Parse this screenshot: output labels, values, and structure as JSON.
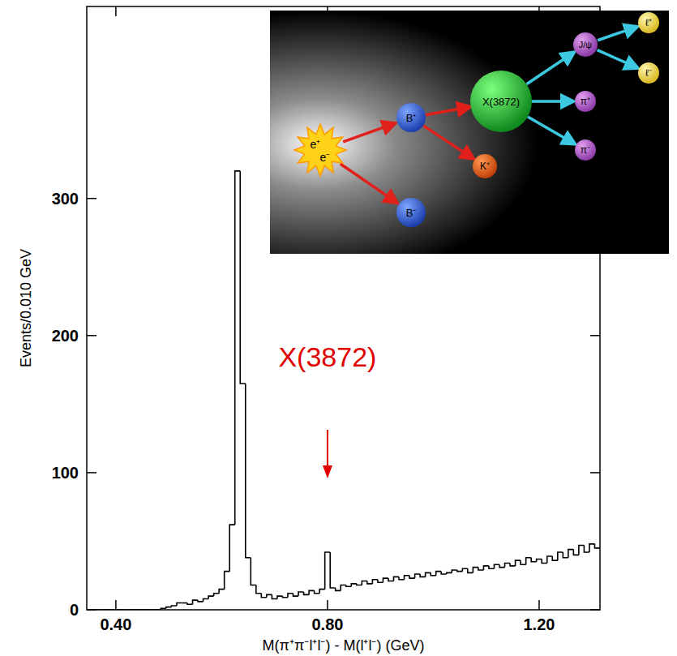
{
  "chart_data": {
    "type": "histogram",
    "x_label": "M(π⁺π⁻l⁺l⁻) - M(l⁺l⁻) (GeV)",
    "y_label": "Events/0.010 GeV",
    "bins": [
      0.345,
      0.355,
      0.365,
      0.375,
      0.385,
      0.395,
      0.405,
      0.415,
      0.425,
      0.435,
      0.445,
      0.455,
      0.465,
      0.475,
      0.485,
      0.495,
      0.505,
      0.515,
      0.525,
      0.535,
      0.545,
      0.555,
      0.565,
      0.575,
      0.585,
      0.595,
      0.605,
      0.615,
      0.625,
      0.635,
      0.645,
      0.655,
      0.665,
      0.675,
      0.685,
      0.695,
      0.705,
      0.715,
      0.725,
      0.735,
      0.745,
      0.755,
      0.765,
      0.775,
      0.785,
      0.795,
      0.805,
      0.815,
      0.825,
      0.835,
      0.845,
      0.855,
      0.865,
      0.875,
      0.885,
      0.895,
      0.905,
      0.915,
      0.925,
      0.935,
      0.945,
      0.955,
      0.965,
      0.975,
      0.985,
      0.995,
      1.005,
      1.015,
      1.025,
      1.035,
      1.045,
      1.055,
      1.065,
      1.075,
      1.085,
      1.095,
      1.105,
      1.115,
      1.125,
      1.135,
      1.145,
      1.155,
      1.165,
      1.175,
      1.185,
      1.195,
      1.205,
      1.215,
      1.225,
      1.235,
      1.245,
      1.255,
      1.265,
      1.275,
      1.285,
      1.295,
      1.305,
      1.315
    ],
    "values": [
      0,
      0,
      0,
      0,
      0,
      0,
      0,
      0,
      0,
      0,
      0,
      0,
      0,
      0,
      1,
      2,
      3,
      5,
      5,
      4,
      7,
      6,
      8,
      10,
      12,
      15,
      28,
      62,
      320,
      165,
      38,
      18,
      12,
      9,
      11,
      8,
      10,
      9,
      12,
      10,
      13,
      11,
      14,
      12,
      15,
      42,
      16,
      14,
      18,
      17,
      19,
      18,
      21,
      19,
      22,
      20,
      23,
      21,
      24,
      22,
      25,
      23,
      26,
      24,
      27,
      25,
      28,
      26,
      27,
      29,
      28,
      30,
      27,
      31,
      29,
      32,
      30,
      33,
      31,
      34,
      32,
      36,
      33,
      38,
      35,
      37,
      34,
      39,
      36,
      42,
      38,
      44,
      40,
      47,
      42,
      48,
      45
    ],
    "color": "#000000",
    "xlim": [
      0.345,
      1.315
    ],
    "ylim": [
      0,
      440
    ],
    "xticks": [
      {
        "value": 0.4,
        "label": "0.40"
      },
      {
        "value": 0.8,
        "label": "0.80"
      },
      {
        "value": 1.2,
        "label": "1.20"
      }
    ],
    "yticks": [
      0,
      100,
      200,
      300
    ],
    "grid": false,
    "annotations": [
      {
        "text": "X(3872)",
        "x": 0.8,
        "color": "#e00000"
      }
    ],
    "inset_labels": [
      "e⁺",
      "e⁻",
      "B⁺",
      "B⁻",
      "X(3872)",
      "K⁺",
      "J/ψ",
      "π⁺",
      "π⁻",
      "ℓ⁺",
      "ℓ⁻"
    ]
  }
}
